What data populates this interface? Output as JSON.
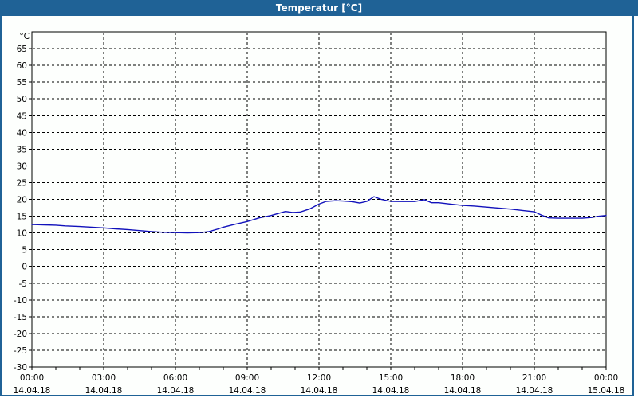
{
  "window": {
    "title": "Temperatur [°C]",
    "titlebar_color": "#1f6296",
    "border_color": "#1f6296",
    "background_color": "#fdfffd"
  },
  "chart_data": {
    "type": "line",
    "title": "Temperatur [°C]",
    "ylabel": "°C",
    "grid": "dashed",
    "legend": "none",
    "x_axis": {
      "unit": "time",
      "tick_every_hours": 1,
      "grid_every_hours": 3,
      "labels": [
        {
          "hour": 0,
          "time": "00:00",
          "date": "14.04.18"
        },
        {
          "hour": 3,
          "time": "03:00",
          "date": "14.04.18"
        },
        {
          "hour": 6,
          "time": "06:00",
          "date": "14.04.18"
        },
        {
          "hour": 9,
          "time": "09:00",
          "date": "14.04.18"
        },
        {
          "hour": 12,
          "time": "12:00",
          "date": "14.04.18"
        },
        {
          "hour": 15,
          "time": "15:00",
          "date": "14.04.18"
        },
        {
          "hour": 18,
          "time": "18:00",
          "date": "14.04.18"
        },
        {
          "hour": 21,
          "time": "21:00",
          "date": "14.04.18"
        },
        {
          "hour": 24,
          "time": "00:00",
          "date": "15.04.18"
        }
      ]
    },
    "y_axis": {
      "unit": "°C",
      "min": -30,
      "max": 70,
      "ticks": [
        65,
        60,
        55,
        50,
        45,
        40,
        35,
        30,
        25,
        20,
        15,
        10,
        5,
        0,
        -5,
        -10,
        -15,
        -20,
        -25,
        -30
      ]
    },
    "series": [
      {
        "name": "Temperatur",
        "color": "#1111bb",
        "points": [
          [
            0,
            12.5
          ],
          [
            0.5,
            12.4
          ],
          [
            1,
            12.3
          ],
          [
            1.4,
            12.1
          ],
          [
            2,
            11.9
          ],
          [
            2.5,
            11.7
          ],
          [
            3,
            11.5
          ],
          [
            3.5,
            11.2
          ],
          [
            4,
            11.0
          ],
          [
            4.5,
            10.7
          ],
          [
            5,
            10.4
          ],
          [
            5.5,
            10.2
          ],
          [
            6,
            10.1
          ],
          [
            6.5,
            10.0
          ],
          [
            7,
            10.1
          ],
          [
            7.4,
            10.4
          ],
          [
            7.8,
            11.2
          ],
          [
            8,
            11.7
          ],
          [
            8.5,
            12.6
          ],
          [
            9,
            13.4
          ],
          [
            9.5,
            14.5
          ],
          [
            10,
            15.2
          ],
          [
            10.4,
            16.0
          ],
          [
            10.6,
            16.4
          ],
          [
            10.9,
            16.1
          ],
          [
            11.2,
            16.2
          ],
          [
            11.6,
            17.1
          ],
          [
            12,
            18.6
          ],
          [
            12.3,
            19.4
          ],
          [
            12.7,
            19.6
          ],
          [
            13,
            19.5
          ],
          [
            13.4,
            19.3
          ],
          [
            13.7,
            18.9
          ],
          [
            14,
            19.4
          ],
          [
            14.3,
            20.8
          ],
          [
            14.6,
            20.0
          ],
          [
            15,
            19.4
          ],
          [
            15.5,
            19.35
          ],
          [
            16,
            19.35
          ],
          [
            16.4,
            19.9
          ],
          [
            16.7,
            19.0
          ],
          [
            17,
            19.0
          ],
          [
            17.5,
            18.6
          ],
          [
            18,
            18.2
          ],
          [
            18.5,
            18.0
          ],
          [
            19,
            17.7
          ],
          [
            19.5,
            17.4
          ],
          [
            20,
            17.1
          ],
          [
            20.5,
            16.7
          ],
          [
            21,
            16.3
          ],
          [
            21.3,
            15.3
          ],
          [
            21.6,
            14.5
          ],
          [
            22,
            14.4
          ],
          [
            22.5,
            14.4
          ],
          [
            23,
            14.4
          ],
          [
            23.4,
            14.6
          ],
          [
            23.7,
            15.0
          ],
          [
            24,
            15.2
          ]
        ]
      }
    ]
  }
}
